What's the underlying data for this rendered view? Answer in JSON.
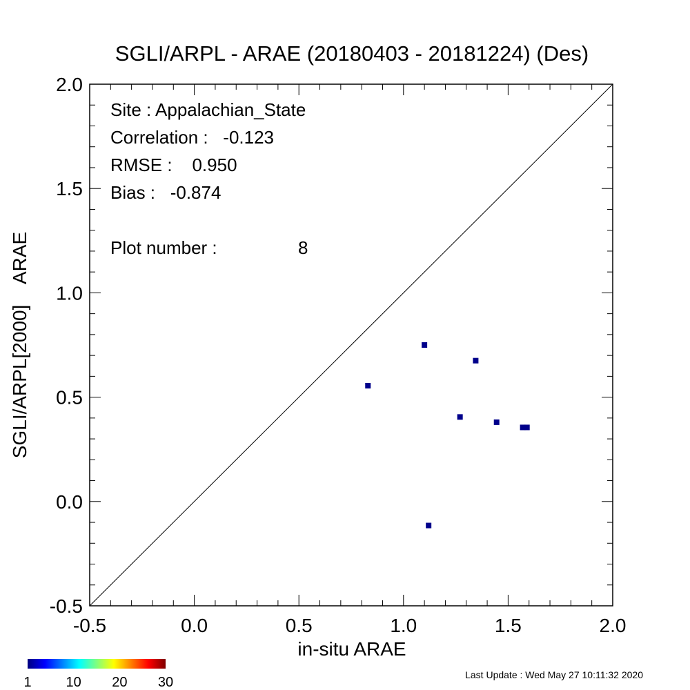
{
  "chart_data": {
    "type": "scatter",
    "title": "SGLI/ARPL - ARAE (20180403 - 20181224) (Des)",
    "xlabel": "in-situ ARAE",
    "ylabel": "SGLI/ARPL[2000]    ARAE",
    "xlim": [
      -0.5,
      2.0
    ],
    "ylim": [
      -0.5,
      2.0
    ],
    "x_ticks": [
      "-0.5",
      "0.0",
      "0.5",
      "1.0",
      "1.5",
      "2.0"
    ],
    "y_ticks": [
      "-0.5",
      "0.0",
      "0.5",
      "1.0",
      "1.5",
      "2.0"
    ],
    "one_to_one_line": true,
    "grid": false,
    "point_color": "#00008b",
    "points": [
      {
        "x": 0.83,
        "y": 0.555
      },
      {
        "x": 1.1,
        "y": 0.75
      },
      {
        "x": 1.345,
        "y": 0.675
      },
      {
        "x": 1.27,
        "y": 0.405
      },
      {
        "x": 1.445,
        "y": 0.38
      },
      {
        "x": 1.57,
        "y": 0.355
      },
      {
        "x": 1.59,
        "y": 0.355
      },
      {
        "x": 1.12,
        "y": -0.115
      }
    ],
    "stats": {
      "site": "Site : Appalachian_State",
      "correlation": "Correlation :   -0.123",
      "rmse": "RMSE :    0.950",
      "bias": "Bias :   -0.874",
      "plot_number_label": "Plot number :",
      "plot_number": "8"
    },
    "colorbar": {
      "colors": [
        "#00007f",
        "#0000ff",
        "#007fff",
        "#00ffff",
        "#7fff7f",
        "#ffff00",
        "#ff7f00",
        "#ff0000",
        "#7f0000"
      ],
      "labels": [
        "1",
        "10",
        "20",
        "30"
      ]
    }
  },
  "footer": {
    "last_update": "Last Update : Wed May 27 10:11:32 2020"
  }
}
